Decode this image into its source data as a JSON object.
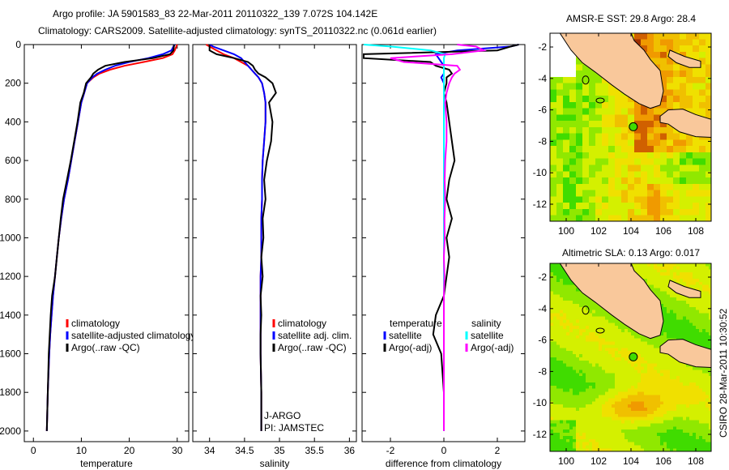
{
  "title_line1": "Argo profile: JA 5901583_83 22-Mar-2011 20110322_139 7.072S 104.142E",
  "title_line2": "Climatology: CARS2009. Satellite-adjusted climatology: synTS_20110322.nc (0.061d earlier)",
  "footer_vertical": "CSIRO 28-Mar-2011 10:30:52",
  "colors": {
    "climatology": "#ff0000",
    "satellite": "#0000ff",
    "argo": "#000000",
    "sal_satellite": "#00ffff",
    "sal_argo": "#ff00ff",
    "land": "#f9c89b"
  },
  "chart_data": [
    {
      "type": "line",
      "xlabel": "temperature",
      "xlim": [
        -1.9,
        32.4
      ],
      "ylim": [
        0,
        2055
      ],
      "y_reversed": true,
      "xticks": [
        0,
        10,
        20,
        30
      ],
      "yticks": [
        0,
        200,
        400,
        600,
        800,
        1000,
        1200,
        1400,
        1600,
        1800,
        2000
      ],
      "depth": [
        0,
        10,
        30,
        50,
        70,
        90,
        110,
        130,
        150,
        170,
        200,
        250,
        300,
        400,
        500,
        600,
        700,
        800,
        900,
        1000,
        1100,
        1200,
        1300,
        1400,
        1500,
        1600,
        1800,
        2000
      ],
      "series": [
        {
          "name": "climatology",
          "color": "#ff0000",
          "values": [
            30,
            29.8,
            29.5,
            29,
            27,
            23,
            19,
            16,
            13.8,
            12.5,
            11.2,
            10.6,
            10,
            9.3,
            8.6,
            7.9,
            7.2,
            6.4,
            5.8,
            5.3,
            4.9,
            4.5,
            4.1,
            3.8,
            3.5,
            3.3,
            3.0,
            2.8
          ]
        },
        {
          "name": "satellite-adjusted climatology",
          "color": "#0000ff",
          "values": [
            29.5,
            29.2,
            28.8,
            27,
            24,
            20,
            17,
            15,
            13.3,
            12.3,
            11.2,
            10.6,
            10,
            9.3,
            8.6,
            7.9,
            7.2,
            6.4,
            5.8,
            5.3,
            4.9,
            4.5,
            4.1,
            3.8,
            3.5,
            3.3,
            3.0,
            2.8
          ]
        },
        {
          "name": "Argo(..raw -QC)",
          "color": "#000000",
          "values": [
            29.3,
            29.3,
            29.2,
            28.5,
            25,
            19,
            15,
            13.5,
            12.5,
            12,
            11,
            10.5,
            9.8,
            9.2,
            8.5,
            7.8,
            7,
            6.2,
            5.7,
            5.3,
            4.9,
            4.5,
            3.9,
            3.6,
            3.4,
            3.2,
            3.0,
            2.8
          ]
        }
      ],
      "legend": [
        "climatology",
        "satellite-adjusted climatology",
        "Argo(..raw -QC)"
      ]
    },
    {
      "type": "line",
      "xlabel": "salinity",
      "xlim": [
        33.76,
        36.1
      ],
      "ylim": [
        0,
        2055
      ],
      "y_reversed": true,
      "xticks": [
        34,
        34.5,
        35,
        35.5,
        36
      ],
      "depth": [
        0,
        10,
        30,
        50,
        70,
        90,
        110,
        130,
        150,
        170,
        200,
        250,
        300,
        400,
        500,
        600,
        700,
        800,
        900,
        1000,
        1100,
        1200,
        1300,
        1400,
        1500,
        1600,
        1800,
        2000
      ],
      "series": [
        {
          "name": "climatology",
          "color": "#ff0000",
          "values": [
            33.95,
            34.0,
            34.1,
            34.2,
            34.35,
            34.45,
            34.55,
            34.6,
            34.65,
            34.7,
            34.75,
            34.78,
            34.8,
            34.8,
            34.78,
            34.76,
            34.75,
            34.75,
            34.74,
            34.74,
            34.74,
            34.73,
            34.73,
            34.73,
            34.73,
            34.73,
            34.74,
            34.74
          ]
        },
        {
          "name": "satellite adj. clim.",
          "color": "#0000ff",
          "values": [
            34.0,
            34.05,
            34.2,
            34.35,
            34.45,
            34.5,
            34.55,
            34.6,
            34.65,
            34.7,
            34.75,
            34.78,
            34.8,
            34.8,
            34.78,
            34.76,
            34.75,
            34.75,
            34.74,
            34.74,
            34.74,
            34.73,
            34.73,
            34.73,
            34.73,
            34.73,
            34.74,
            34.74
          ]
        },
        {
          "name": "Argo(..raw -QC)",
          "color": "#000000",
          "values": [
            34.0,
            34.0,
            34.0,
            34.1,
            34.35,
            34.55,
            34.62,
            34.65,
            34.7,
            34.8,
            34.9,
            34.95,
            34.85,
            34.9,
            34.88,
            34.82,
            34.78,
            34.8,
            34.76,
            34.77,
            34.74,
            34.76,
            34.73,
            34.74,
            34.73,
            34.73,
            34.74,
            34.74
          ]
        }
      ],
      "legend": [
        "climatology",
        "satellite adj. clim.",
        "Argo(..raw -QC)"
      ],
      "annotations": [
        "J-ARGO",
        "PI: JAMSTEC"
      ]
    },
    {
      "type": "line",
      "xlabel": "difference from climatology",
      "xlim": [
        -3.06,
        3.03
      ],
      "ylim": [
        0,
        2055
      ],
      "y_reversed": true,
      "xticks": [
        -2,
        0,
        2
      ],
      "depth": [
        0,
        10,
        30,
        50,
        70,
        90,
        110,
        130,
        150,
        170,
        200,
        250,
        300,
        400,
        500,
        600,
        700,
        800,
        900,
        1000,
        1100,
        1200,
        1300,
        1400,
        1500,
        1600,
        1800,
        2000
      ],
      "series": [
        {
          "name": "temperature satellite",
          "color": "#0000ff",
          "values": [
            2.8,
            2.5,
            0.5,
            -0.3,
            -0.2,
            -0.1,
            0,
            0,
            0,
            -0.1,
            0,
            0,
            0,
            0,
            0,
            0,
            0,
            0,
            0,
            0,
            0,
            0,
            0,
            0,
            0,
            0,
            0,
            0
          ]
        },
        {
          "name": "temperature Argo(-adj)",
          "color": "#000000",
          "values": [
            2.8,
            2.5,
            2.0,
            -3,
            -3,
            -0.5,
            -0.3,
            0.2,
            0.3,
            0.1,
            0.1,
            0,
            0.1,
            0.2,
            0.3,
            0.4,
            0.2,
            0.1,
            0.3,
            0.1,
            0.2,
            0.1,
            0,
            -0.3,
            -0.4,
            -0.1,
            0,
            0
          ]
        },
        {
          "name": "salinity satellite",
          "color": "#00ffff",
          "values": [
            -3,
            -2,
            -0.5,
            0.05,
            0,
            0,
            0,
            0,
            0,
            0,
            0,
            0,
            0,
            0,
            0,
            0,
            0,
            0,
            0,
            0,
            0,
            0,
            0,
            0,
            0,
            0,
            0,
            0
          ]
        },
        {
          "name": "salinity Argo(-adj)",
          "color": "#ff00ff",
          "values": [
            0.5,
            1.2,
            1.5,
            0.3,
            -2,
            -1.5,
            0.5,
            0.6,
            0.4,
            0.3,
            0.2,
            0.1,
            0.05,
            0.1,
            0.1,
            0.05,
            0.03,
            0.05,
            0.02,
            0.03,
            0,
            0.02,
            0,
            0,
            0,
            0,
            0,
            0
          ]
        }
      ],
      "legend_temperature": {
        "title": "temperature",
        "items": [
          "satellite",
          "Argo(-adj)"
        ]
      },
      "legend_salinity": {
        "title": "salinity",
        "items": [
          "satellite",
          "Argo(-adj)"
        ]
      }
    },
    {
      "type": "heatmap",
      "title": "AMSR-E SST: 29.8 Argo: 28.4",
      "xlim": [
        99.0,
        108.95
      ],
      "ylim": [
        -13.1,
        -1.1
      ],
      "xticks": [
        100,
        102,
        104,
        106,
        108
      ],
      "yticks": [
        -2,
        -4,
        -6,
        -8,
        -10,
        -12
      ],
      "argo_position": [
        104.142,
        -7.072
      ]
    },
    {
      "type": "heatmap",
      "title": "Altimetric SLA: 0.13 Argo: 0.017",
      "xlim": [
        99.0,
        108.95
      ],
      "ylim": [
        -13.1,
        -1.1
      ],
      "xticks": [
        100,
        102,
        104,
        106,
        108
      ],
      "yticks": [
        -2,
        -4,
        -6,
        -8,
        -10,
        -12
      ],
      "argo_position": [
        104.142,
        -7.072
      ]
    }
  ]
}
